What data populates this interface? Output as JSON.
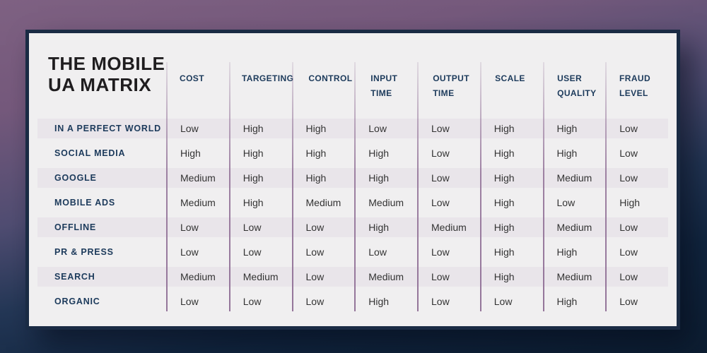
{
  "title": {
    "line1": "THE MOBILE",
    "line2": "UA MATRIX"
  },
  "chart_data": {
    "type": "table",
    "title": "THE MOBILE UA MATRIX",
    "columns": [
      "COST",
      "TARGETING",
      "CONTROL",
      "INPUT TIME",
      "OUTPUT TIME",
      "SCALE",
      "USER QUALITY",
      "FRAUD LEVEL"
    ],
    "rows": [
      {
        "label": "IN A PERFECT WORLD",
        "values": [
          "Low",
          "High",
          "High",
          "Low",
          "Low",
          "High",
          "High",
          "Low"
        ]
      },
      {
        "label": "SOCIAL MEDIA",
        "values": [
          "High",
          "High",
          "High",
          "High",
          "Low",
          "High",
          "High",
          "Low"
        ]
      },
      {
        "label": "GOOGLE",
        "values": [
          "Medium",
          "High",
          "High",
          "High",
          "Low",
          "High",
          "Medium",
          "Low"
        ]
      },
      {
        "label": "MOBILE ADS",
        "values": [
          "Medium",
          "High",
          "Medium",
          "Medium",
          "Low",
          "High",
          "Low",
          "High"
        ]
      },
      {
        "label": "OFFLINE",
        "values": [
          "Low",
          "Low",
          "Low",
          "High",
          "Medium",
          "High",
          "Medium",
          "Low"
        ]
      },
      {
        "label": "PR & PRESS",
        "values": [
          "Low",
          "Low",
          "Low",
          "Low",
          "Low",
          "High",
          "High",
          "Low"
        ]
      },
      {
        "label": "SEARCH",
        "values": [
          "Medium",
          "Medium",
          "Low",
          "Medium",
          "Low",
          "High",
          "Medium",
          "Low"
        ]
      },
      {
        "label": "ORGANIC",
        "values": [
          "Low",
          "Low",
          "Low",
          "High",
          "Low",
          "Low",
          "High",
          "Low"
        ]
      }
    ]
  },
  "colors": {
    "background_top": "#7e6182",
    "background_bottom": "#0d1e32",
    "card_background": "#f0eff0",
    "card_border": "#1a2b44",
    "row_stripe": "#e9e5ea",
    "divider": "#997b9e",
    "heading_text": "#1c3a5b",
    "title_text": "#1f1d1f",
    "value_text": "#333333"
  }
}
